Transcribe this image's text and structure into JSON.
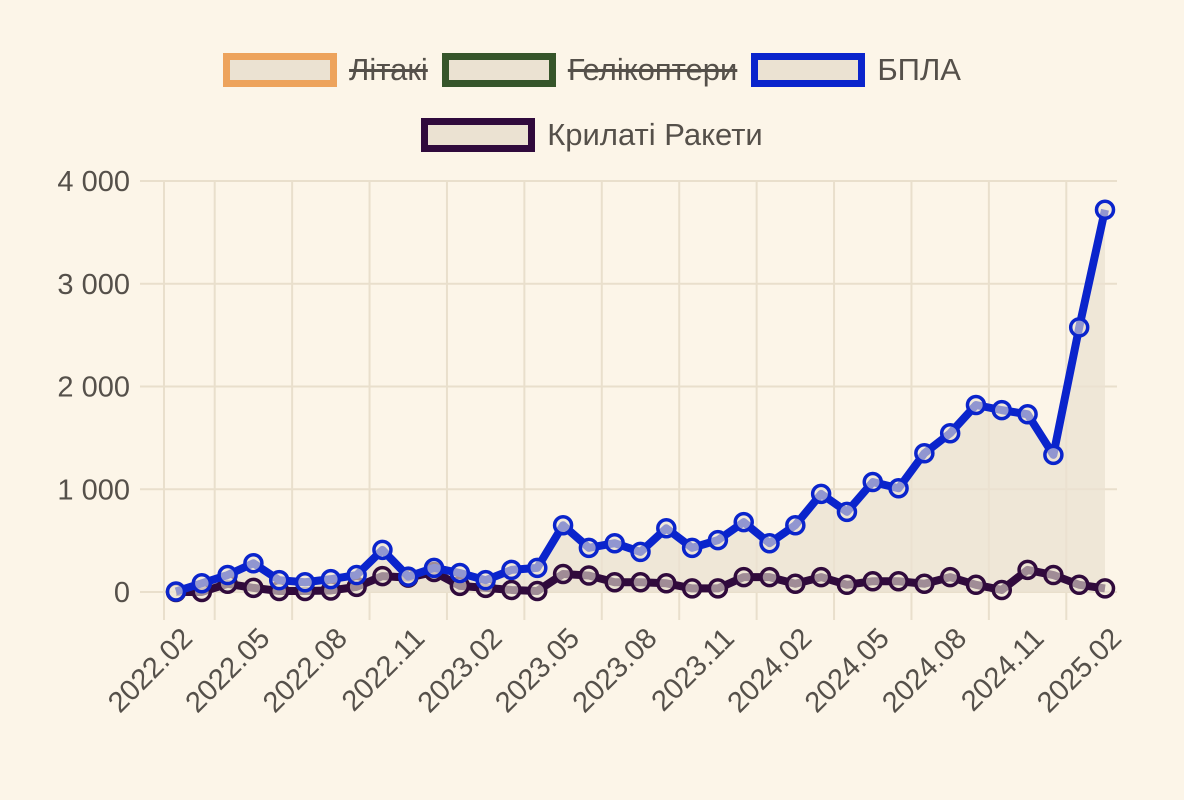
{
  "legend": [
    {
      "label": "Літакі",
      "color": "#eda35c",
      "hidden": true
    },
    {
      "label": "Гелікоптери",
      "color": "#36552a",
      "hidden": true
    },
    {
      "label": "БПЛА",
      "color": "#0a24cc",
      "hidden": false
    },
    {
      "label": "Крилаті Ракети",
      "color": "#300a3c",
      "hidden": false
    }
  ],
  "chart_data": {
    "type": "line",
    "title": "",
    "xlabel": "",
    "ylabel": "",
    "ylim": [
      0,
      4000
    ],
    "yticks": [
      0,
      1000,
      2000,
      3000,
      4000
    ],
    "ytick_labels": [
      "0",
      "1 000",
      "2 000",
      "3 000",
      "4 000"
    ],
    "xtick_labels": [
      "2022.02",
      "2022.05",
      "2022.08",
      "2022.11",
      "2023.02",
      "2023.05",
      "2023.08",
      "2023.11",
      "2024.02",
      "2024.05",
      "2024.08",
      "2024.11",
      "2025.02"
    ],
    "grid": true,
    "legend_position": "top",
    "area_fill": "#ebe2d2",
    "x": [
      "2022.02",
      "2022.03",
      "2022.04",
      "2022.05",
      "2022.06",
      "2022.07",
      "2022.08",
      "2022.09",
      "2022.10",
      "2022.11",
      "2022.12",
      "2023.01",
      "2023.02",
      "2023.03",
      "2023.04",
      "2023.05",
      "2023.06",
      "2023.07",
      "2023.08",
      "2023.09",
      "2023.10",
      "2023.11",
      "2023.12",
      "2024.01",
      "2024.02",
      "2024.03",
      "2024.04",
      "2024.05",
      "2024.06",
      "2024.07",
      "2024.08",
      "2024.09",
      "2024.10",
      "2024.11",
      "2024.12",
      "2025.01",
      "2025.02"
    ],
    "series": [
      {
        "name": "Літакі",
        "hidden": true,
        "color": "#eda35c",
        "values": []
      },
      {
        "name": "Гелікоптери",
        "hidden": true,
        "color": "#36552a",
        "values": []
      },
      {
        "name": "БПЛА",
        "hidden": false,
        "color": "#0a24cc",
        "values": [
          5,
          85,
          165,
          280,
          115,
          95,
          125,
          165,
          410,
          150,
          235,
          185,
          115,
          215,
          235,
          650,
          430,
          475,
          390,
          620,
          430,
          505,
          680,
          475,
          650,
          955,
          780,
          1070,
          1010,
          1350,
          1545,
          1820,
          1770,
          1730,
          1335,
          2575,
          3720
        ]
      },
      {
        "name": "Крилаті Ракети",
        "hidden": false,
        "color": "#300a3c",
        "values": [
          0,
          0,
          80,
          40,
          10,
          10,
          15,
          50,
          155,
          140,
          195,
          60,
          40,
          20,
          10,
          175,
          160,
          95,
          95,
          85,
          35,
          35,
          145,
          145,
          80,
          145,
          70,
          105,
          105,
          80,
          145,
          70,
          20,
          215,
          165,
          70,
          35
        ]
      }
    ]
  }
}
